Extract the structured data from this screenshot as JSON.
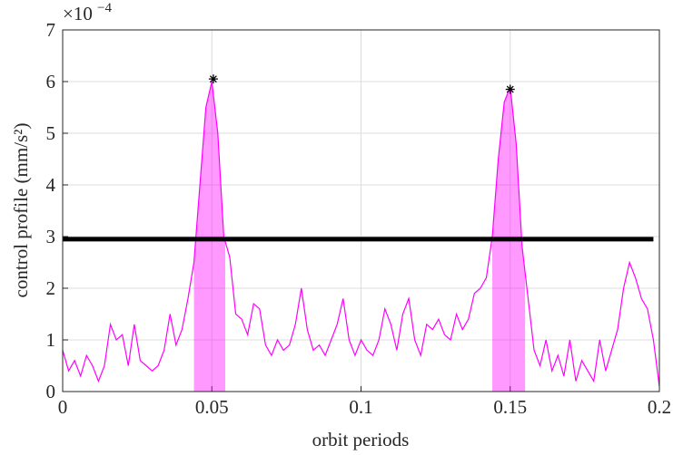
{
  "chart_data": {
    "type": "line",
    "xlabel": "orbit periods",
    "ylabel": "control profile (mm/s²)",
    "y_multiplier": "×10",
    "y_multiplier_exponent": "−4",
    "xlim": [
      0,
      0.2
    ],
    "ylim": [
      0,
      7
    ],
    "xticks": [
      0,
      0.05,
      0.1,
      0.15,
      0.2
    ],
    "yticks": [
      0,
      1,
      2,
      3,
      4,
      5,
      6,
      7
    ],
    "grid": true,
    "series": [
      {
        "color": "#ff00ff",
        "x": [
          0,
          0.002,
          0.004,
          0.006,
          0.008,
          0.01,
          0.012,
          0.014,
          0.016,
          0.018,
          0.02,
          0.022,
          0.024,
          0.026,
          0.028,
          0.03,
          0.032,
          0.034,
          0.036,
          0.038,
          0.04,
          0.042,
          0.044,
          0.046,
          0.048,
          0.05,
          0.052,
          0.054,
          0.056,
          0.058,
          0.06,
          0.062,
          0.064,
          0.066,
          0.068,
          0.07,
          0.072,
          0.074,
          0.076,
          0.078,
          0.08,
          0.082,
          0.084,
          0.086,
          0.088,
          0.09,
          0.092,
          0.094,
          0.096,
          0.098,
          0.1,
          0.102,
          0.104,
          0.106,
          0.108,
          0.11,
          0.112,
          0.114,
          0.116,
          0.118,
          0.12,
          0.122,
          0.124,
          0.126,
          0.128,
          0.13,
          0.132,
          0.134,
          0.136,
          0.138,
          0.14,
          0.142,
          0.144,
          0.146,
          0.148,
          0.15,
          0.152,
          0.154,
          0.156,
          0.158,
          0.16,
          0.162,
          0.164,
          0.166,
          0.168,
          0.17,
          0.172,
          0.174,
          0.176,
          0.178,
          0.18,
          0.182,
          0.184,
          0.186,
          0.188,
          0.19,
          0.192,
          0.194,
          0.196,
          0.198,
          0.2
        ],
        "values": [
          0.8,
          0.4,
          0.6,
          0.3,
          0.7,
          0.5,
          0.2,
          0.5,
          1.3,
          1.0,
          1.1,
          0.5,
          1.3,
          0.6,
          0.5,
          0.4,
          0.5,
          0.8,
          1.5,
          0.9,
          1.2,
          1.8,
          2.5,
          4.0,
          5.5,
          6.0,
          5.0,
          3.0,
          2.6,
          1.5,
          1.4,
          1.1,
          1.7,
          1.6,
          0.9,
          0.7,
          1.0,
          0.8,
          0.9,
          1.3,
          2.0,
          1.2,
          0.8,
          0.9,
          0.7,
          1.0,
          1.3,
          1.8,
          1.0,
          0.7,
          1.0,
          0.8,
          0.7,
          1.0,
          1.6,
          1.3,
          0.8,
          1.5,
          1.8,
          1.0,
          0.7,
          1.3,
          1.2,
          1.4,
          1.1,
          1.0,
          1.5,
          1.2,
          1.4,
          1.9,
          2.0,
          2.2,
          3.0,
          4.5,
          5.6,
          5.9,
          4.8,
          2.8,
          1.8,
          0.8,
          0.5,
          1.0,
          0.4,
          0.7,
          0.3,
          1.0,
          0.2,
          0.6,
          0.4,
          0.2,
          1.0,
          0.4,
          0.8,
          1.2,
          2.0,
          2.5,
          2.2,
          1.8,
          1.6,
          1.0,
          0.1
        ]
      }
    ],
    "shaded_regions": [
      [
        0.044,
        0.0545
      ],
      [
        0.144,
        0.155
      ]
    ],
    "shade_color": "#ff00ff",
    "threshold": {
      "value": 2.95,
      "x": [
        0,
        0.198
      ],
      "color": "#000000"
    },
    "peaks": {
      "x": [
        0.0505,
        0.15
      ],
      "y": [
        6.05,
        5.85
      ],
      "color": "#000000"
    }
  }
}
